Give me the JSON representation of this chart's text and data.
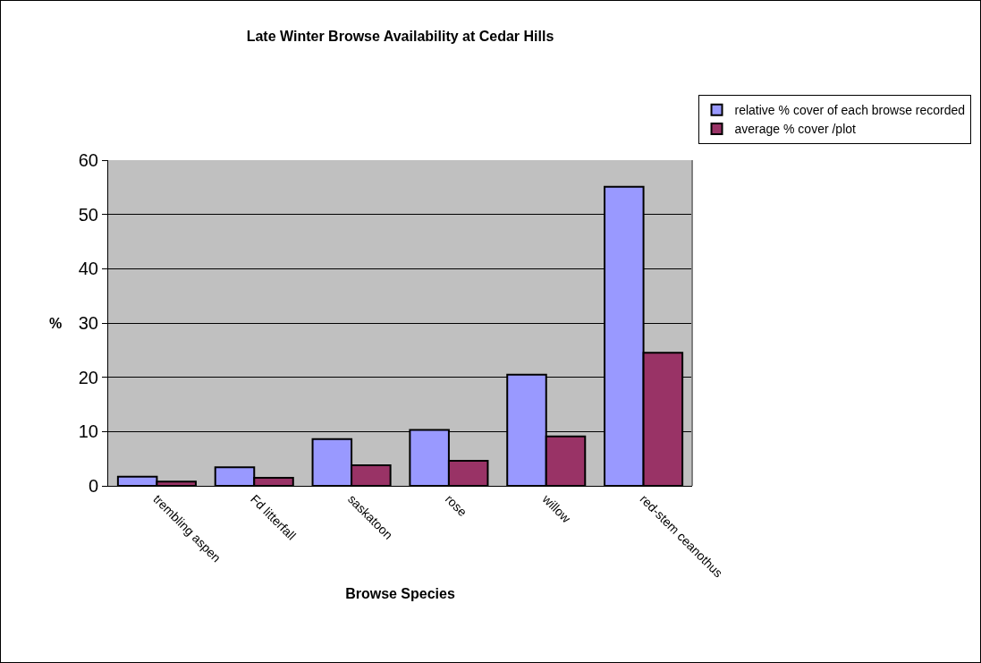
{
  "chart_data": {
    "type": "bar",
    "title": "Late Winter Browse Availability at Cedar Hills",
    "xlabel": "Browse Species",
    "ylabel": "%",
    "categories": [
      "trembling aspen",
      "Fd litterfall",
      "saskatoon",
      "rose",
      "willow",
      "red-stem ceanothus"
    ],
    "series": [
      {
        "name": "relative % cover of each browse recorded",
        "color": "#9999ff",
        "values": [
          1.7,
          3.4,
          8.6,
          10.3,
          20.5,
          55.1
        ]
      },
      {
        "name": "average % cover /plot",
        "color": "#993366",
        "values": [
          0.8,
          1.5,
          3.8,
          4.6,
          9.1,
          24.5
        ]
      }
    ],
    "ylim": [
      0,
      60
    ],
    "yticks": [
      0,
      10,
      20,
      30,
      40,
      50,
      60
    ],
    "grid": "y",
    "legend": "top right"
  }
}
